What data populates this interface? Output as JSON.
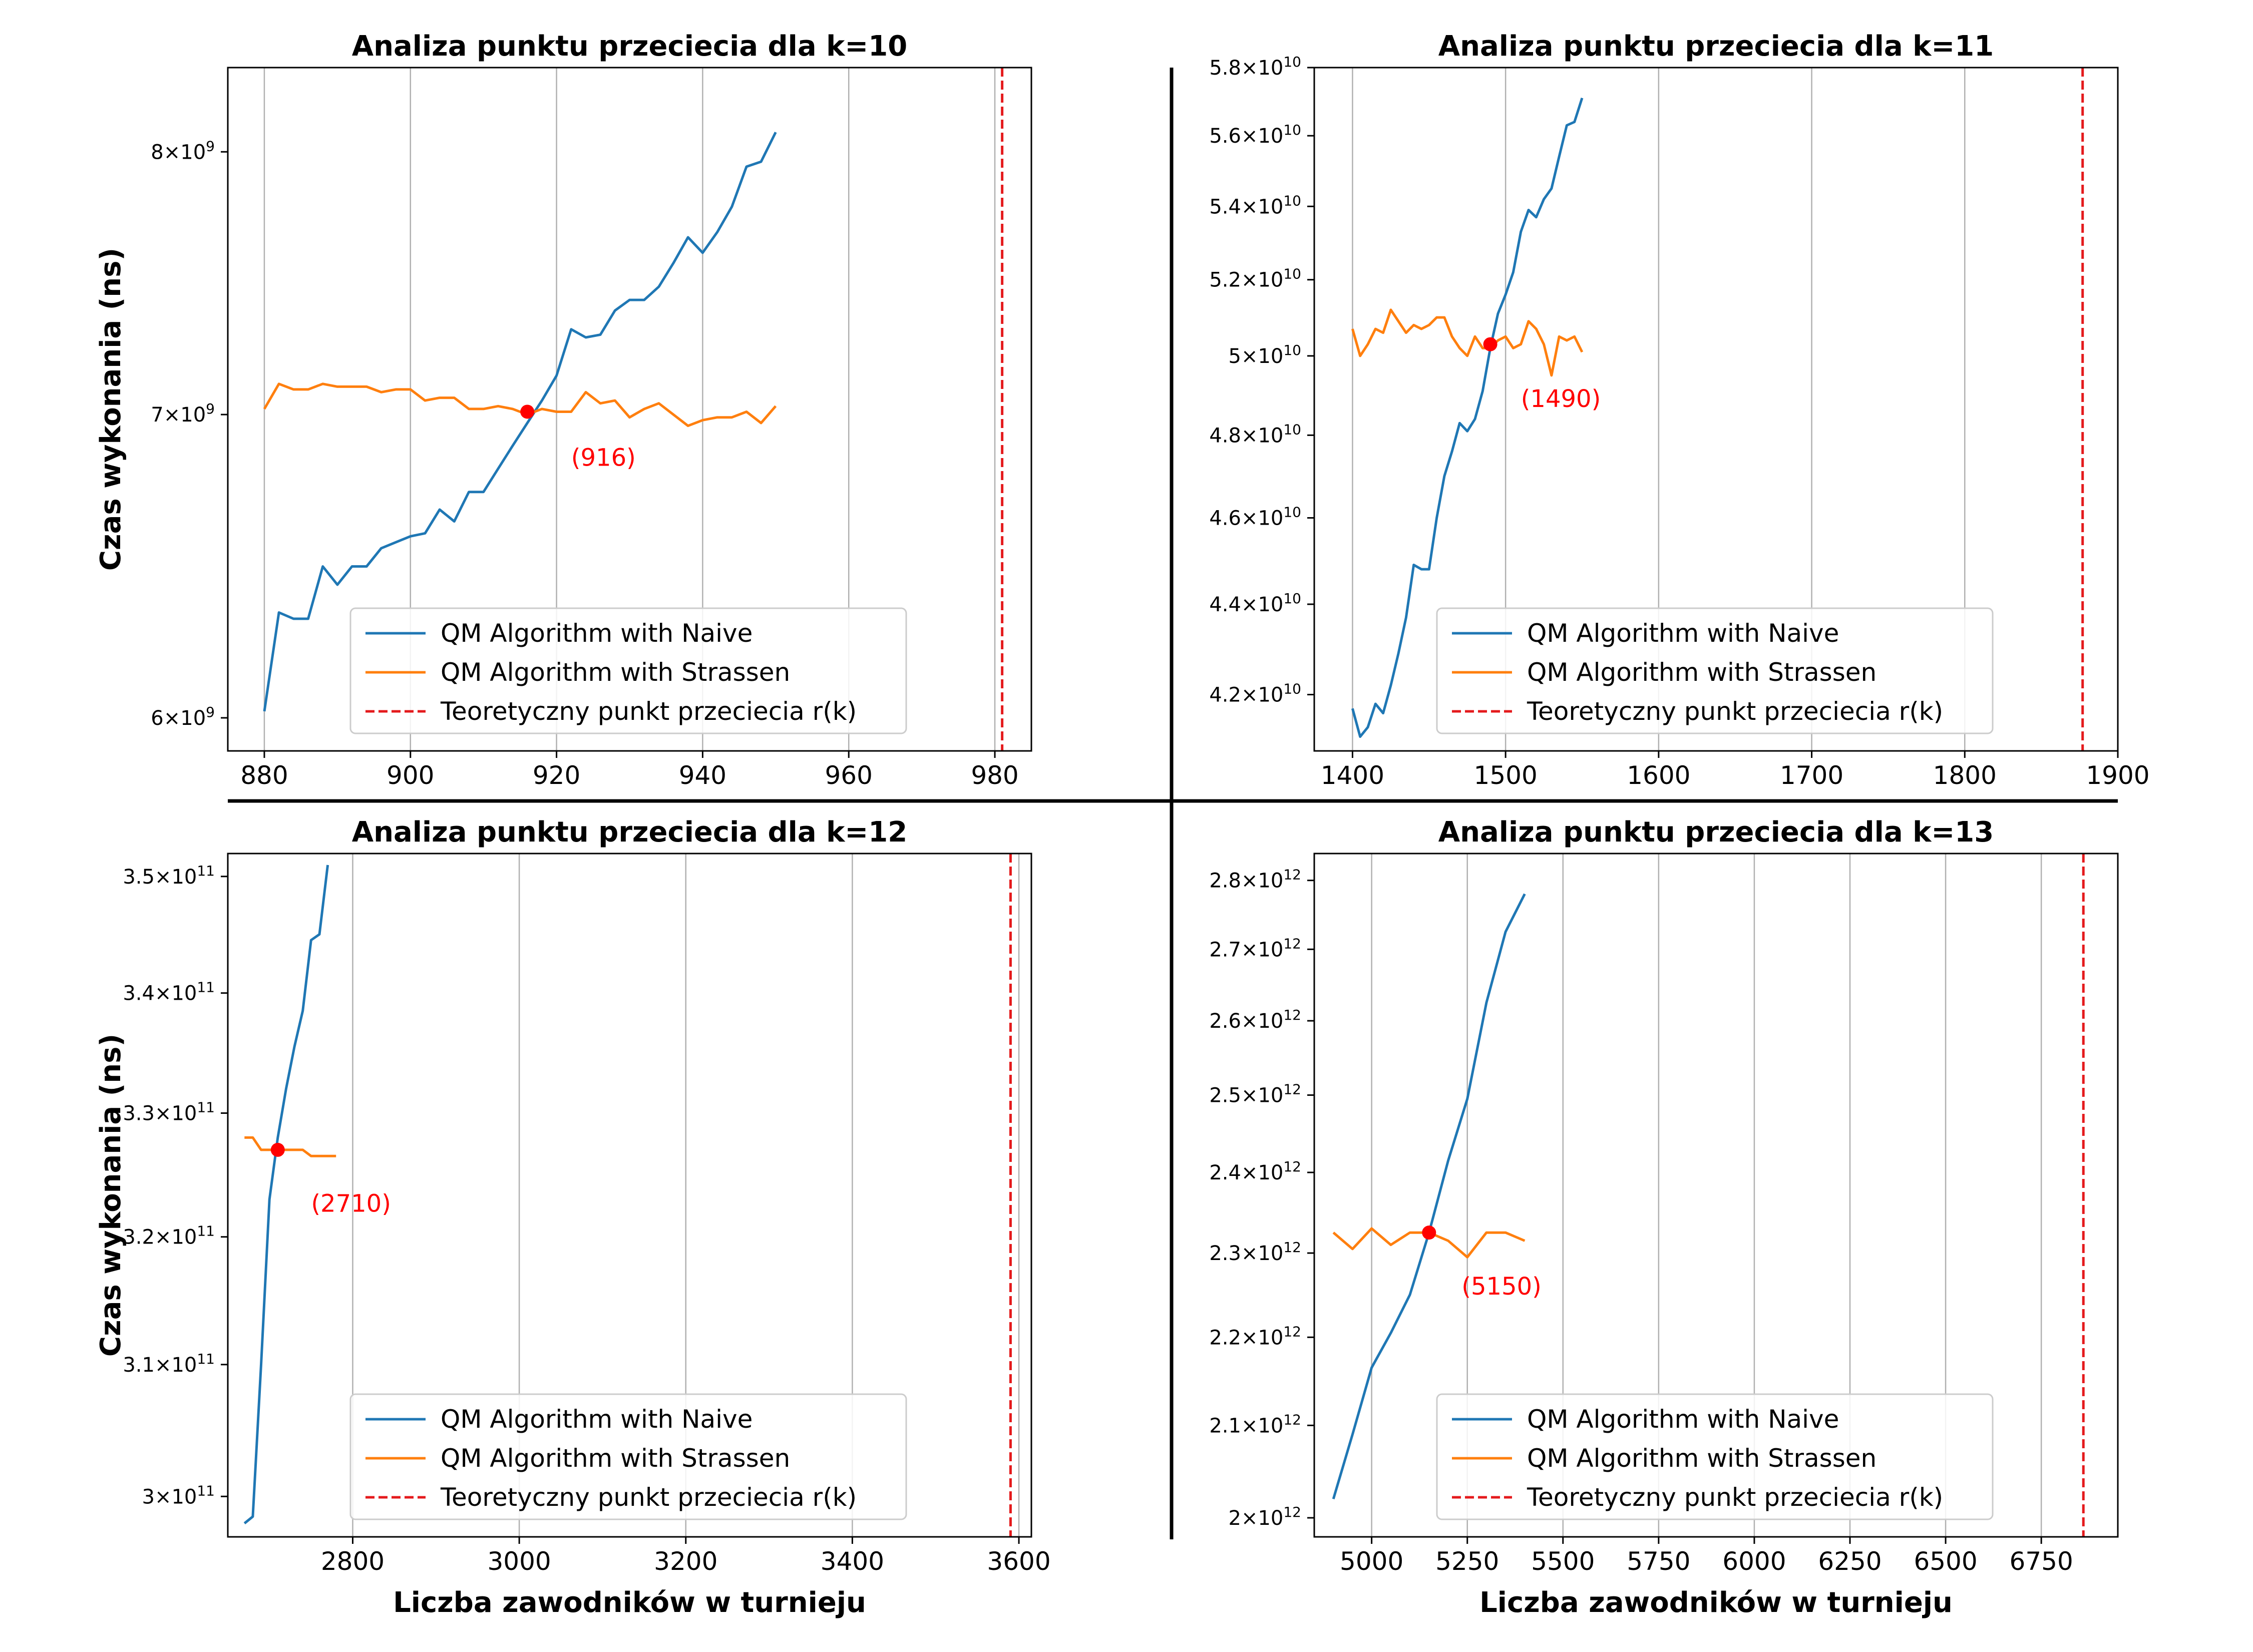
{
  "legend_labels": [
    "QM Algorithm with Naive",
    "QM Algorithm with Strassen",
    "Teoretyczny punkt przeciecia r(k)"
  ],
  "colors": {
    "naive": "#1f77b4",
    "strassen": "#ff7f0e",
    "theory": "#e41a1c",
    "marker": "#ff0000",
    "grid": "#b0b0b0"
  },
  "chart_data": [
    {
      "type": "line",
      "title": "Analiza punktu przeciecia dla k=10",
      "xlabel": "",
      "ylabel": "Czas wykonania (ns)",
      "xlim": [
        875,
        985
      ],
      "ylim": [
        5900000000.0,
        8350000000.0
      ],
      "xticks": [
        880,
        900,
        920,
        940,
        960,
        980
      ],
      "yticks": [
        {
          "value": 6000000000.0,
          "mant": "6",
          "exp": "9"
        },
        {
          "value": 7000000000.0,
          "mant": "7",
          "exp": "9"
        },
        {
          "value": 8000000000.0,
          "mant": "8",
          "exp": "9"
        }
      ],
      "grid_x": true,
      "legend_position": "lower center",
      "series": [
        {
          "name": "QM Algorithm with Naive",
          "x_start": 880,
          "x_step": 2,
          "values": [
            6020000000.0,
            6330000000.0,
            6310000000.0,
            6310000000.0,
            6480000000.0,
            6420000000.0,
            6480000000.0,
            6480000000.0,
            6540000000.0,
            6560000000.0,
            6580000000.0,
            6590000000.0,
            6670000000.0,
            6630000000.0,
            6730000000.0,
            6730000000.0,
            6810000000.0,
            6890000000.0,
            6970000000.0,
            7050000000.0,
            7140000000.0,
            7310000000.0,
            7280000000.0,
            7290000000.0,
            7380000000.0,
            7420000000.0,
            7420000000.0,
            7470000000.0,
            7560000000.0,
            7660000000.0,
            7600000000.0,
            7680000000.0,
            7780000000.0,
            7940000000.0,
            7960000000.0,
            8080000000.0
          ]
        },
        {
          "name": "QM Algorithm with Strassen",
          "x_start": 880,
          "x_step": 2,
          "values": [
            7020000000.0,
            7110000000.0,
            7090000000.0,
            7090000000.0,
            7110000000.0,
            7100000000.0,
            7100000000.0,
            7100000000.0,
            7080000000.0,
            7090000000.0,
            7090000000.0,
            7050000000.0,
            7060000000.0,
            7060000000.0,
            7020000000.0,
            7020000000.0,
            7030000000.0,
            7020000000.0,
            7000000000.0,
            7020000000.0,
            7010000000.0,
            7010000000.0,
            7080000000.0,
            7040000000.0,
            7050000000.0,
            6990000000.0,
            7020000000.0,
            7040000000.0,
            7000000000.0,
            6960000000.0,
            6980000000.0,
            6990000000.0,
            6990000000.0,
            7010000000.0,
            6970000000.0,
            7030000000.0
          ]
        }
      ],
      "theory_x": 981,
      "crossover": {
        "x": 916,
        "y": 7010000000.0,
        "label": "(916)",
        "label_x": 922,
        "label_y": 6820000000.0
      }
    },
    {
      "type": "line",
      "title": "Analiza punktu przeciecia dla k=11",
      "xlabel": "",
      "ylabel": "",
      "xlim": [
        1375,
        1900
      ],
      "ylim": [
        40800000000.0,
        58000000000.0
      ],
      "xticks": [
        1400,
        1500,
        1600,
        1700,
        1800,
        1900
      ],
      "yticks": [
        {
          "value": 42000000000.0,
          "mant": "4.2",
          "exp": "10"
        },
        {
          "value": 44000000000.0,
          "mant": "4.4",
          "exp": "10"
        },
        {
          "value": 46000000000.0,
          "mant": "4.6",
          "exp": "10"
        },
        {
          "value": 48000000000.0,
          "mant": "4.8",
          "exp": "10"
        },
        {
          "value": 50000000000.0,
          "mant": "5",
          "exp": "10"
        },
        {
          "value": 52000000000.0,
          "mant": "5.2",
          "exp": "10"
        },
        {
          "value": 54000000000.0,
          "mant": "5.4",
          "exp": "10"
        },
        {
          "value": 56000000000.0,
          "mant": "5.6",
          "exp": "10"
        },
        {
          "value": 58000000000.0,
          "mant": "5.8",
          "exp": "10"
        }
      ],
      "grid_x": true,
      "legend_position": "lower center",
      "series": [
        {
          "name": "QM Algorithm with Naive",
          "x_start": 1400,
          "x_step": 5,
          "values": [
            41700000000.0,
            41100000000.0,
            41300000000.0,
            41800000000.0,
            41600000000.0,
            42200000000.0,
            42900000000.0,
            43700000000.0,
            44900000000.0,
            44800000000.0,
            44800000000.0,
            46000000000.0,
            47000000000.0,
            47600000000.0,
            48300000000.0,
            48100000000.0,
            48400000000.0,
            49100000000.0,
            50200000000.0,
            51100000000.0,
            51600000000.0,
            52200000000.0,
            53300000000.0,
            53900000000.0,
            53700000000.0,
            54200000000.0,
            54500000000.0,
            55400000000.0,
            56300000000.0,
            56400000000.0,
            57100000000.0
          ]
        },
        {
          "name": "QM Algorithm with Strassen",
          "x_start": 1400,
          "x_step": 5,
          "values": [
            50700000000.0,
            50000000000.0,
            50300000000.0,
            50700000000.0,
            50600000000.0,
            51200000000.0,
            50900000000.0,
            50600000000.0,
            50800000000.0,
            50700000000.0,
            50800000000.0,
            51000000000.0,
            51000000000.0,
            50500000000.0,
            50200000000.0,
            50000000000.0,
            50500000000.0,
            50200000000.0,
            50200000000.0,
            50400000000.0,
            50500000000.0,
            50200000000.0,
            50300000000.0,
            50900000000.0,
            50700000000.0,
            50300000000.0,
            49500000000.0,
            50500000000.0,
            50400000000.0,
            50500000000.0,
            50100000000.0
          ]
        }
      ],
      "theory_x": 1877,
      "crossover": {
        "x": 1490,
        "y": 50300000000.0,
        "label": "(1490)",
        "label_x": 1510,
        "label_y": 48700000000.0
      }
    },
    {
      "type": "line",
      "title": "Analiza punktu przeciecia dla k=12",
      "xlabel": "Liczba zawodników w turnieju",
      "ylabel": "Czas wykonania (ns)",
      "xlim": [
        2650,
        3615
      ],
      "ylim": [
        297000000000.0,
        352000000000.0
      ],
      "xticks": [
        2800,
        3000,
        3200,
        3400,
        3600
      ],
      "yticks": [
        {
          "value": 300000000000.0,
          "mant": "3",
          "exp": "11"
        },
        {
          "value": 310000000000.0,
          "mant": "3.1",
          "exp": "11"
        },
        {
          "value": 320000000000.0,
          "mant": "3.2",
          "exp": "11"
        },
        {
          "value": 330000000000.0,
          "mant": "3.3",
          "exp": "11"
        },
        {
          "value": 340000000000.0,
          "mant": "3.4",
          "exp": "11"
        },
        {
          "value": 350000000000.0,
          "mant": "3.5",
          "exp": "11"
        }
      ],
      "grid_x": true,
      "legend_position": "lower center",
      "series": [
        {
          "name": "QM Algorithm with Naive",
          "x_start": 2670,
          "x_step": 10,
          "values": [
            298000000000.0,
            298500000000.0,
            310000000000.0,
            323000000000.0,
            328000000000.0,
            332000000000.0,
            335500000000.0,
            338500000000.0,
            344500000000.0,
            345000000000.0,
            351000000000.0
          ]
        },
        {
          "name": "QM Algorithm with Strassen",
          "x_start": 2670,
          "x_step": 10,
          "values": [
            328000000000.0,
            328000000000.0,
            327000000000.0,
            327000000000.0,
            327000000000.0,
            327000000000.0,
            327000000000.0,
            327000000000.0,
            326500000000.0,
            326500000000.0,
            326500000000.0,
            326500000000.0
          ]
        }
      ],
      "theory_x": 3590,
      "crossover": {
        "x": 2710,
        "y": 327000000000.0,
        "label": "(2710)",
        "label_x": 2750,
        "label_y": 322000000000.0
      }
    },
    {
      "type": "line",
      "title": "Analiza punktu przeciecia dla k=13",
      "xlabel": "Liczba zawodników w turnieju",
      "ylabel": "",
      "xlim": [
        4850,
        6950
      ],
      "ylim": [
        1980000000000.0,
        2840000000000.0
      ],
      "xticks": [
        5000,
        5250,
        5500,
        5750,
        6000,
        6250,
        6500,
        6750
      ],
      "yticks": [
        {
          "value": 2000000000000.0,
          "mant": "2",
          "exp": "12"
        },
        {
          "value": 2100000000000.0,
          "mant": "2.1",
          "exp": "12"
        },
        {
          "value": 2200000000000.0,
          "mant": "2.2",
          "exp": "12"
        },
        {
          "value": 2300000000000.0,
          "mant": "2.3",
          "exp": "12"
        },
        {
          "value": 2400000000000.0,
          "mant": "2.4",
          "exp": "12"
        },
        {
          "value": 2500000000000.0,
          "mant": "2.5",
          "exp": "12"
        },
        {
          "value": 2600000000000.0,
          "mant": "2.6",
          "exp": "12"
        },
        {
          "value": 2700000000000.0,
          "mant": "2.7",
          "exp": "12"
        },
        {
          "value": 2800000000000.0,
          "mant": "2.8",
          "exp": "12"
        }
      ],
      "grid_x": true,
      "legend_position": "lower center",
      "series": [
        {
          "name": "QM Algorithm with Naive",
          "x_start": 4900,
          "x_step": 50,
          "values": [
            2020000000000.0,
            2090000000000.0,
            2165000000000.0,
            2205000000000.0,
            2250000000000.0,
            2325000000000.0,
            2415000000000.0,
            2495000000000.0,
            2625000000000.0,
            2725000000000.0,
            2780000000000.0
          ]
        },
        {
          "name": "QM Algorithm with Strassen",
          "x_start": 4900,
          "x_step": 50,
          "values": [
            2325000000000.0,
            2305000000000.0,
            2330000000000.0,
            2310000000000.0,
            2325000000000.0,
            2325000000000.0,
            2315000000000.0,
            2295000000000.0,
            2325000000000.0,
            2325000000000.0,
            2315000000000.0
          ]
        }
      ],
      "theory_x": 6860,
      "crossover": {
        "x": 5150,
        "y": 2325000000000.0,
        "label": "(5150)",
        "label_x": 5235,
        "label_y": 2250000000000.0
      }
    }
  ]
}
